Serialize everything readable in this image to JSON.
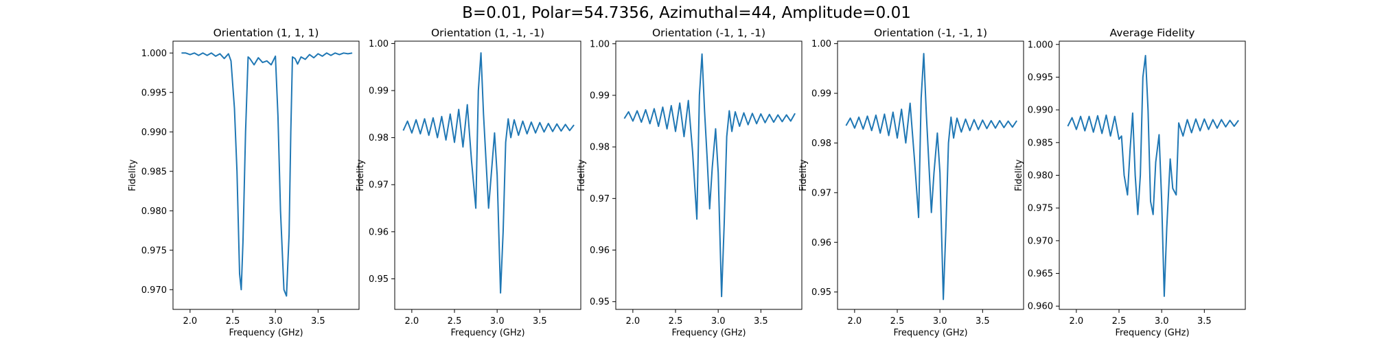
{
  "figure": {
    "suptitle": "B=0.01, Polar=54.7356, Azimuthal=44, Amplitude=0.01"
  },
  "chart_data": [
    {
      "type": "line",
      "title": "Orientation (1, 1, 1)",
      "xlabel": "Frequency (GHz)",
      "ylabel": "Fidelity",
      "xlim": [
        1.8,
        3.98
      ],
      "ylim": [
        0.9675,
        1.0015
      ],
      "xticks": [
        2.0,
        2.5,
        3.0,
        3.5
      ],
      "yticks": [
        0.97,
        0.975,
        0.98,
        0.985,
        0.99,
        0.995,
        1.0
      ],
      "ytick_decimals": 3,
      "color": "#1f77b4",
      "series": [
        {
          "x": [
            1.9,
            1.95,
            2.0,
            2.05,
            2.1,
            2.15,
            2.2,
            2.25,
            2.3,
            2.35,
            2.4,
            2.45,
            2.48,
            2.52,
            2.55,
            2.58,
            2.6,
            2.62,
            2.65,
            2.68,
            2.7,
            2.75,
            2.8,
            2.85,
            2.9,
            2.95,
            3.0,
            3.03,
            3.06,
            3.1,
            3.13,
            3.16,
            3.18,
            3.2,
            3.23,
            3.26,
            3.3,
            3.35,
            3.4,
            3.45,
            3.5,
            3.55,
            3.6,
            3.65,
            3.7,
            3.75,
            3.8,
            3.85,
            3.9
          ],
          "y": [
            1.0,
            1.0,
            0.9998,
            1.0,
            0.9997,
            1.0,
            0.9997,
            1.0,
            0.9996,
            0.9999,
            0.9993,
            0.9999,
            0.999,
            0.993,
            0.985,
            0.972,
            0.97,
            0.976,
            0.99,
            0.9995,
            0.9993,
            0.9985,
            0.9994,
            0.9988,
            0.999,
            0.9985,
            0.9996,
            0.992,
            0.98,
            0.97,
            0.9692,
            0.977,
            0.99,
            0.9995,
            0.9993,
            0.9986,
            0.9995,
            0.9992,
            0.9998,
            0.9994,
            0.9999,
            0.9996,
            1.0,
            0.9997,
            1.0,
            0.9998,
            1.0,
            0.9999,
            1.0
          ]
        }
      ]
    },
    {
      "type": "line",
      "title": "Orientation (1, -1, -1)",
      "xlabel": "Frequency (GHz)",
      "ylabel": "Fidelity",
      "xlim": [
        1.8,
        3.98
      ],
      "ylim": [
        0.9435,
        1.0005
      ],
      "xticks": [
        2.0,
        2.5,
        3.0,
        3.5
      ],
      "yticks": [
        0.95,
        0.96,
        0.97,
        0.98,
        0.99,
        1.0
      ],
      "ytick_decimals": 2,
      "color": "#1f77b4",
      "series": [
        {
          "x": [
            1.9,
            1.95,
            2.0,
            2.05,
            2.1,
            2.15,
            2.2,
            2.25,
            2.3,
            2.35,
            2.4,
            2.45,
            2.5,
            2.55,
            2.6,
            2.65,
            2.7,
            2.75,
            2.78,
            2.81,
            2.84,
            2.87,
            2.9,
            2.93,
            2.97,
            3.0,
            3.04,
            3.07,
            3.1,
            3.13,
            3.16,
            3.2,
            3.25,
            3.3,
            3.35,
            3.4,
            3.45,
            3.5,
            3.55,
            3.6,
            3.65,
            3.7,
            3.75,
            3.8,
            3.85,
            3.9
          ],
          "y": [
            0.9815,
            0.9835,
            0.981,
            0.9838,
            0.9808,
            0.984,
            0.9805,
            0.9842,
            0.98,
            0.9845,
            0.9795,
            0.985,
            0.979,
            0.986,
            0.978,
            0.987,
            0.975,
            0.965,
            0.99,
            0.998,
            0.985,
            0.975,
            0.965,
            0.972,
            0.981,
            0.972,
            0.947,
            0.96,
            0.979,
            0.984,
            0.98,
            0.9838,
            0.9805,
            0.9835,
            0.9808,
            0.9833,
            0.981,
            0.9832,
            0.9812,
            0.983,
            0.9813,
            0.9829,
            0.9814,
            0.9828,
            0.9815,
            0.9827
          ]
        }
      ]
    },
    {
      "type": "line",
      "title": "Orientation (-1, 1, -1)",
      "xlabel": "Frequency (GHz)",
      "ylabel": "Fidelity",
      "xlim": [
        1.8,
        3.98
      ],
      "ylim": [
        0.9485,
        1.0005
      ],
      "xticks": [
        2.0,
        2.5,
        3.0,
        3.5
      ],
      "yticks": [
        0.95,
        0.96,
        0.97,
        0.98,
        0.99,
        1.0
      ],
      "ytick_decimals": 2,
      "color": "#1f77b4",
      "series": [
        {
          "x": [
            1.9,
            1.95,
            2.0,
            2.05,
            2.1,
            2.15,
            2.2,
            2.25,
            2.3,
            2.35,
            2.4,
            2.45,
            2.5,
            2.55,
            2.6,
            2.65,
            2.7,
            2.75,
            2.78,
            2.81,
            2.84,
            2.87,
            2.9,
            2.93,
            2.97,
            3.0,
            3.04,
            3.07,
            3.1,
            3.13,
            3.16,
            3.2,
            3.25,
            3.3,
            3.35,
            3.4,
            3.45,
            3.5,
            3.55,
            3.6,
            3.65,
            3.7,
            3.75,
            3.8,
            3.85,
            3.9
          ],
          "y": [
            0.9855,
            0.9868,
            0.985,
            0.987,
            0.9848,
            0.9872,
            0.9845,
            0.9874,
            0.984,
            0.9877,
            0.9835,
            0.988,
            0.983,
            0.9885,
            0.982,
            0.989,
            0.979,
            0.966,
            0.99,
            0.998,
            0.987,
            0.978,
            0.968,
            0.976,
            0.9835,
            0.975,
            0.951,
            0.965,
            0.982,
            0.987,
            0.983,
            0.9868,
            0.984,
            0.9866,
            0.9843,
            0.9865,
            0.9845,
            0.9864,
            0.9847,
            0.9863,
            0.9848,
            0.9862,
            0.9849,
            0.9862,
            0.985,
            0.9865
          ]
        }
      ]
    },
    {
      "type": "line",
      "title": "Orientation (-1, -1, 1)",
      "xlabel": "Frequency (GHz)",
      "ylabel": "Fidelity",
      "xlim": [
        1.8,
        3.98
      ],
      "ylim": [
        0.9465,
        1.0005
      ],
      "xticks": [
        2.0,
        2.5,
        3.0,
        3.5
      ],
      "yticks": [
        0.95,
        0.96,
        0.97,
        0.98,
        0.99,
        1.0
      ],
      "ytick_decimals": 2,
      "color": "#1f77b4",
      "series": [
        {
          "x": [
            1.9,
            1.95,
            2.0,
            2.05,
            2.1,
            2.15,
            2.2,
            2.25,
            2.3,
            2.35,
            2.4,
            2.45,
            2.5,
            2.55,
            2.6,
            2.65,
            2.7,
            2.75,
            2.78,
            2.81,
            2.84,
            2.87,
            2.9,
            2.93,
            2.97,
            3.0,
            3.04,
            3.07,
            3.1,
            3.13,
            3.16,
            3.2,
            3.25,
            3.3,
            3.35,
            3.4,
            3.45,
            3.5,
            3.55,
            3.6,
            3.65,
            3.7,
            3.75,
            3.8,
            3.85,
            3.9
          ],
          "y": [
            0.9835,
            0.985,
            0.983,
            0.9852,
            0.9828,
            0.9854,
            0.9825,
            0.9856,
            0.982,
            0.9858,
            0.9815,
            0.9862,
            0.981,
            0.9868,
            0.98,
            0.988,
            0.977,
            0.965,
            0.989,
            0.998,
            0.986,
            0.976,
            0.966,
            0.974,
            0.982,
            0.974,
            0.9485,
            0.963,
            0.98,
            0.9852,
            0.981,
            0.985,
            0.9822,
            0.9848,
            0.9825,
            0.9847,
            0.9827,
            0.9846,
            0.9829,
            0.9845,
            0.983,
            0.9845,
            0.9831,
            0.9844,
            0.9832,
            0.9845
          ]
        }
      ]
    },
    {
      "type": "line",
      "title": "Average Fidelity",
      "xlabel": "Frequency (GHz)",
      "ylabel": "Fidelity",
      "xlim": [
        1.8,
        3.98
      ],
      "ylim": [
        0.9595,
        1.0005
      ],
      "xticks": [
        2.0,
        2.5,
        3.0,
        3.5
      ],
      "yticks": [
        0.96,
        0.965,
        0.97,
        0.975,
        0.98,
        0.985,
        0.99,
        0.995,
        1.0
      ],
      "ytick_decimals": 3,
      "color": "#1f77b4",
      "series": [
        {
          "x": [
            1.9,
            1.95,
            2.0,
            2.05,
            2.1,
            2.15,
            2.2,
            2.25,
            2.3,
            2.35,
            2.4,
            2.45,
            2.5,
            2.53,
            2.56,
            2.6,
            2.63,
            2.66,
            2.69,
            2.72,
            2.75,
            2.78,
            2.81,
            2.84,
            2.87,
            2.9,
            2.93,
            2.97,
            3.0,
            3.03,
            3.06,
            3.1,
            3.13,
            3.17,
            3.2,
            3.25,
            3.3,
            3.35,
            3.4,
            3.45,
            3.5,
            3.55,
            3.6,
            3.65,
            3.7,
            3.75,
            3.8,
            3.85,
            3.9
          ],
          "y": [
            0.9875,
            0.9888,
            0.987,
            0.989,
            0.9868,
            0.989,
            0.9866,
            0.9891,
            0.9864,
            0.9892,
            0.986,
            0.989,
            0.9855,
            0.986,
            0.98,
            0.977,
            0.984,
            0.9895,
            0.98,
            0.974,
            0.98,
            0.995,
            0.9983,
            0.99,
            0.976,
            0.974,
            0.982,
            0.9862,
            0.976,
            0.9615,
            0.972,
            0.9825,
            0.978,
            0.977,
            0.988,
            0.986,
            0.9885,
            0.9865,
            0.9886,
            0.9868,
            0.9886,
            0.987,
            0.9885,
            0.9872,
            0.9885,
            0.9874,
            0.9884,
            0.9875,
            0.9884
          ]
        }
      ]
    }
  ]
}
